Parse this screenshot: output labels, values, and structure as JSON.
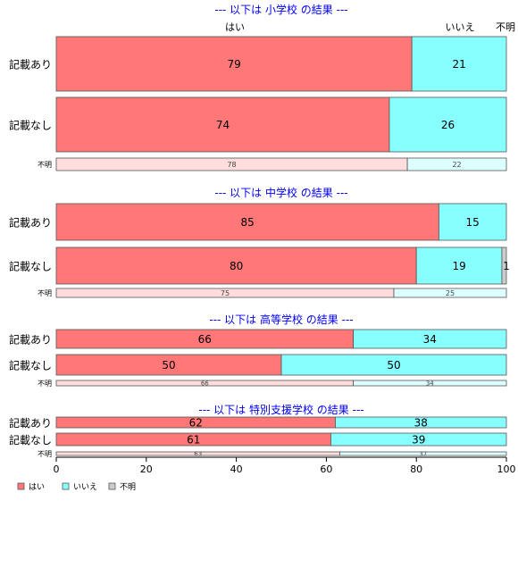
{
  "colors": {
    "yes": "#ff7777",
    "no": "#88ffff",
    "unknown": "#cccccc",
    "yes_light": "#ffdddd",
    "no_light": "#ddffff",
    "unknown_light": "#f0f0f0",
    "title": "#0000ee"
  },
  "header_labels": {
    "yes": "はい",
    "no": "いいえ",
    "unknown": "不明"
  },
  "chart_data": {
    "type": "bar",
    "orientation": "horizontal",
    "stacked": true,
    "xlim": [
      0,
      100
    ],
    "x_ticks": [
      "0",
      "20",
      "40",
      "60",
      "80",
      "100"
    ],
    "legend": {
      "position": "bottom-left",
      "entries": [
        {
          "key": "yes",
          "label": "はい"
        },
        {
          "key": "no",
          "label": "いいえ"
        },
        {
          "key": "unknown",
          "label": "不明"
        }
      ]
    },
    "panels": [
      {
        "title": "--- 以下は 小学校 の結果 ---",
        "rows": [
          {
            "label": "記載あり",
            "values": [
              79,
              21,
              0
            ],
            "labels": [
              "79",
              "21",
              ""
            ],
            "faded": false
          },
          {
            "label": "記載なし",
            "values": [
              74,
              26,
              0
            ],
            "labels": [
              "74",
              "26",
              ""
            ],
            "faded": false
          },
          {
            "label": "不明",
            "values": [
              78,
              22,
              0
            ],
            "labels": [
              "78",
              "22",
              ""
            ],
            "faded": true
          }
        ]
      },
      {
        "title": "--- 以下は 中学校 の結果 ---",
        "rows": [
          {
            "label": "記載あり",
            "values": [
              85,
              15,
              0
            ],
            "labels": [
              "85",
              "15",
              ""
            ],
            "faded": false
          },
          {
            "label": "記載なし",
            "values": [
              80,
              19,
              1
            ],
            "labels": [
              "80",
              "19",
              "1"
            ],
            "faded": false
          },
          {
            "label": "不明",
            "values": [
              75,
              25,
              0
            ],
            "labels": [
              "75",
              "25",
              ""
            ],
            "faded": true
          }
        ]
      },
      {
        "title": "--- 以下は 高等学校 の結果 ---",
        "rows": [
          {
            "label": "記載あり",
            "values": [
              66,
              34,
              0
            ],
            "labels": [
              "66",
              "34",
              ""
            ],
            "faded": false
          },
          {
            "label": "記載なし",
            "values": [
              50,
              50,
              0
            ],
            "labels": [
              "50",
              "50",
              ""
            ],
            "faded": false
          },
          {
            "label": "不明",
            "values": [
              66,
              34,
              0
            ],
            "labels": [
              "66",
              "34",
              ""
            ],
            "faded": true
          }
        ]
      },
      {
        "title": "--- 以下は 特別支援学校 の結果 ---",
        "rows": [
          {
            "label": "記載あり",
            "values": [
              62,
              38,
              0
            ],
            "labels": [
              "62",
              "38",
              ""
            ],
            "faded": false
          },
          {
            "label": "記載なし",
            "values": [
              61,
              39,
              0
            ],
            "labels": [
              "61",
              "39",
              ""
            ],
            "faded": false
          },
          {
            "label": "不明",
            "values": [
              63,
              37,
              0
            ],
            "labels": [
              "63",
              "37",
              ""
            ],
            "faded": true
          }
        ]
      }
    ]
  }
}
